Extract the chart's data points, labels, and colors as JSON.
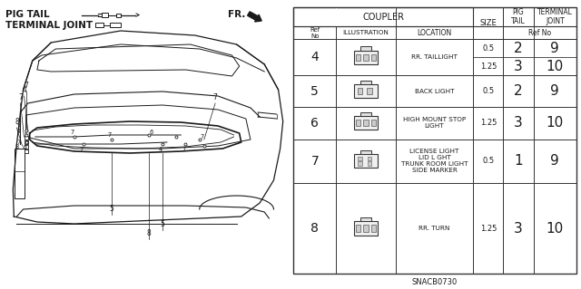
{
  "bg_color": "#ffffff",
  "line_color": "#1a1a1a",
  "font_color": "#1a1a1a",
  "table_line_color": "#333333",
  "legend": {
    "pig_tail_label": "PIG TAIL",
    "terminal_joint_label": "TERMINAL JOINT"
  },
  "fr_label": "FR.",
  "part_code": "SNACB0730",
  "table": {
    "rows": [
      {
        "ref": "4",
        "loc": "RR. TAILLIGHT",
        "size1": "0.5",
        "pig1": "2",
        "jnt1": "9",
        "size2": "1.25",
        "pig2": "3",
        "jnt2": "10",
        "double": true
      },
      {
        "ref": "5",
        "loc": "BACK LIGHT",
        "size1": "0.5",
        "pig1": "2",
        "jnt1": "9",
        "double": false
      },
      {
        "ref": "6",
        "loc": "HIGH MOUNT STOP\nLIGHT",
        "size1": "1.25",
        "pig1": "3",
        "jnt1": "10",
        "double": false
      },
      {
        "ref": "7",
        "loc": "LICENSE LIGHT\nLID L GHT\nTRUNK ROOM LIGHT\nSIDE MARKER",
        "size1": "0.5",
        "pig1": "1",
        "jnt1": "9",
        "double": false
      },
      {
        "ref": "8",
        "loc": "RR. TURN",
        "size1": "1.25",
        "pig1": "3",
        "jnt1": "10",
        "double": false
      }
    ]
  }
}
